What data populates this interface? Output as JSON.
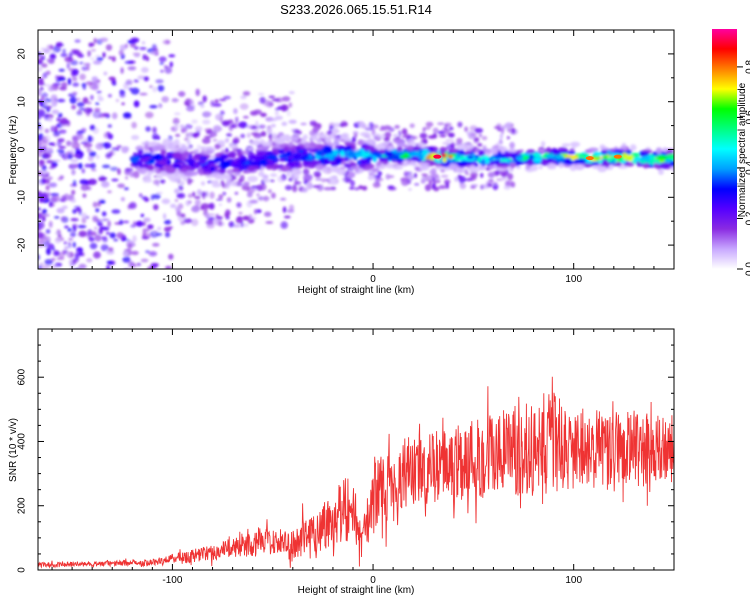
{
  "title": "S233.2026.065.15.51.R14",
  "chart_data": [
    {
      "type": "heatmap",
      "title": "S233.2026.065.15.51.R14",
      "xlabel": "Height of straight line (km)",
      "ylabel": "Frequency (Hz)",
      "xlim": [
        -167,
        150
      ],
      "ylim": [
        -25,
        25
      ],
      "xticks": [
        -100,
        0,
        100
      ],
      "yticks": [
        -20,
        -10,
        0,
        10,
        20
      ],
      "colorbar": {
        "label": "Normalized spectral amplitude",
        "range": [
          0.0,
          0.95
        ],
        "ticks": [
          0.0,
          0.2,
          0.4,
          0.6,
          0.8
        ],
        "colormap": [
          "#ffffff",
          "#c8a8ff",
          "#8a2be2",
          "#5500ff",
          "#0000ff",
          "#00a0ff",
          "#00ffff",
          "#00ff80",
          "#00ff00",
          "#ffff00",
          "#ff8000",
          "#ff0000",
          "#ff00a0"
        ]
      },
      "ridge": {
        "description": "main spectral ridge near 0 Hz",
        "points": [
          {
            "x": -110,
            "y": -2,
            "amp": 0.35
          },
          {
            "x": -95,
            "y": -2.5,
            "amp": 0.3
          },
          {
            "x": -80,
            "y": -3,
            "amp": 0.35
          },
          {
            "x": -60,
            "y": -2.5,
            "amp": 0.35
          },
          {
            "x": -40,
            "y": -1.5,
            "amp": 0.4
          },
          {
            "x": -20,
            "y": -1,
            "amp": 0.45
          },
          {
            "x": 0,
            "y": -1.5,
            "amp": 0.55
          },
          {
            "x": 20,
            "y": -1,
            "amp": 0.6
          },
          {
            "x": 32,
            "y": -1.5,
            "amp": 0.9
          },
          {
            "x": 50,
            "y": -2,
            "amp": 0.6
          },
          {
            "x": 70,
            "y": -2,
            "amp": 0.55
          },
          {
            "x": 90,
            "y": -1.5,
            "amp": 0.6
          },
          {
            "x": 108,
            "y": -1.8,
            "amp": 0.8
          },
          {
            "x": 122,
            "y": -1.5,
            "amp": 0.8
          },
          {
            "x": 140,
            "y": -2,
            "amp": 0.7
          }
        ]
      }
    },
    {
      "type": "line",
      "xlabel": "Height of straight line (km)",
      "ylabel": "SNR (10 * v/v)",
      "xlim": [
        -167,
        150
      ],
      "ylim": [
        0,
        750
      ],
      "xticks": [
        -100,
        0,
        100
      ],
      "yticks": [
        0,
        200,
        400,
        600
      ],
      "color": "#ef3333",
      "series": [
        {
          "name": "SNR",
          "x": [
            -167,
            -150,
            -130,
            -110,
            -100,
            -90,
            -80,
            -70,
            -60,
            -50,
            -40,
            -30,
            -20,
            -15,
            -10,
            -5,
            0,
            5,
            10,
            15,
            20,
            30,
            40,
            50,
            60,
            70,
            80,
            90,
            100,
            110,
            120,
            130,
            140,
            150
          ],
          "values": [
            15,
            18,
            20,
            25,
            35,
            45,
            55,
            70,
            85,
            90,
            75,
            110,
            160,
            200,
            180,
            90,
            230,
            260,
            250,
            310,
            300,
            320,
            330,
            350,
            360,
            370,
            380,
            400,
            360,
            380,
            370,
            380,
            370,
            375
          ],
          "noise": [
            8,
            8,
            8,
            10,
            15,
            22,
            25,
            30,
            45,
            40,
            50,
            80,
            90,
            110,
            100,
            60,
            100,
            110,
            110,
            110,
            110,
            110,
            120,
            130,
            140,
            140,
            150,
            160,
            120,
            130,
            130,
            120,
            110,
            110
          ]
        }
      ]
    }
  ]
}
